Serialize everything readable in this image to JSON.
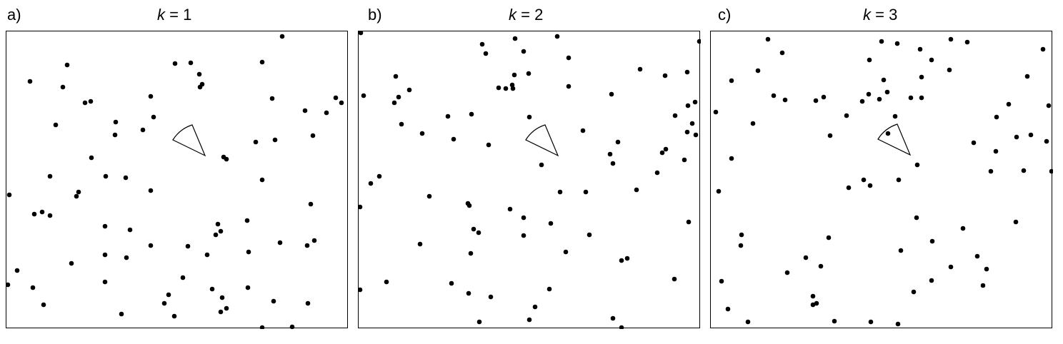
{
  "panels": [
    {
      "label": "a)",
      "title_var": "k",
      "title_rest": " = 1",
      "cone": "sector",
      "points": [
        [
          394,
          50
        ],
        [
          244,
          88
        ],
        [
          266,
          87
        ],
        [
          366,
          86
        ],
        [
          93,
          90
        ],
        [
          41,
          113
        ],
        [
          278,
          103
        ],
        [
          282,
          117
        ],
        [
          279,
          121
        ],
        [
          87,
          121
        ],
        [
          210,
          134
        ],
        [
          380,
          137
        ],
        [
          118,
          143
        ],
        [
          126,
          141
        ],
        [
          469,
          136
        ],
        [
          477,
          143
        ],
        [
          426,
          154
        ],
        [
          456,
          157
        ],
        [
          161,
          170
        ],
        [
          214,
          163
        ],
        [
          77,
          174
        ],
        [
          199,
          181
        ],
        [
          160,
          188
        ],
        [
          437,
          189
        ],
        [
          384,
          195
        ],
        [
          357,
          198
        ],
        [
          312,
          219
        ],
        [
          316,
          222
        ],
        [
          127,
          220
        ],
        [
          69,
          246
        ],
        [
          147,
          246
        ],
        [
          175,
          248
        ],
        [
          366,
          251
        ],
        [
          210,
          266
        ],
        [
          109,
          268
        ],
        [
          106,
          274
        ],
        [
          12,
          272
        ],
        [
          434,
          285
        ],
        [
          47,
          299
        ],
        [
          58,
          296
        ],
        [
          69,
          301
        ],
        [
          345,
          308
        ],
        [
          304,
          313
        ],
        [
          146,
          316
        ],
        [
          181,
          321
        ],
        [
          308,
          323
        ],
        [
          301,
          328
        ],
        [
          439,
          336
        ],
        [
          429,
          343
        ],
        [
          391,
          339
        ],
        [
          210,
          343
        ],
        [
          262,
          344
        ],
        [
          347,
          352
        ],
        [
          289,
          356
        ],
        [
          146,
          356
        ],
        [
          176,
          360
        ],
        [
          99,
          368
        ],
        [
          23,
          378
        ],
        [
          255,
          388
        ],
        [
          8,
          398
        ],
        [
          146,
          394
        ],
        [
          45,
          402
        ],
        [
          296,
          404
        ],
        [
          346,
          402
        ],
        [
          235,
          412
        ],
        [
          310,
          416
        ],
        [
          229,
          424
        ],
        [
          382,
          421
        ],
        [
          430,
          424
        ],
        [
          60,
          426
        ],
        [
          316,
          431
        ],
        [
          308,
          436
        ],
        [
          243,
          442
        ],
        [
          169,
          439
        ],
        [
          408,
          457
        ],
        [
          366,
          462
        ]
      ]
    },
    {
      "label": "b)",
      "title_var": "k",
      "title_rest": " = 2",
      "cone": "sector",
      "points": [
        [
          504,
          45
        ],
        [
          720,
          53
        ],
        [
          779,
          50
        ],
        [
          979,
          57
        ],
        [
          674,
          61
        ],
        [
          679,
          74
        ],
        [
          732,
          71
        ],
        [
          795,
          80
        ],
        [
          895,
          96
        ],
        [
          961,
          100
        ],
        [
          553,
          106
        ],
        [
          739,
          102
        ],
        [
          719,
          104
        ],
        [
          930,
          105
        ],
        [
          716,
          118
        ],
        [
          697,
          122
        ],
        [
          707,
          123
        ],
        [
          717,
          123
        ],
        [
          795,
          120
        ],
        [
          572,
          125
        ],
        [
          508,
          133
        ],
        [
          557,
          135
        ],
        [
          551,
          143
        ],
        [
          855,
          131
        ],
        [
          972,
          142
        ],
        [
          962,
          147
        ],
        [
          626,
          162
        ],
        [
          659,
          159
        ],
        [
          740,
          163
        ],
        [
          944,
          161
        ],
        [
          968,
          172
        ],
        [
          561,
          173
        ],
        [
          961,
          184
        ],
        [
          590,
          186
        ],
        [
          815,
          182
        ],
        [
          634,
          194
        ],
        [
          973,
          188
        ],
        [
          683,
          202
        ],
        [
          864,
          198
        ],
        [
          931,
          208
        ],
        [
          926,
          213
        ],
        [
          853,
          215
        ],
        [
          957,
          223
        ],
        [
          857,
          228
        ],
        [
          757,
          230
        ],
        [
          530,
          246
        ],
        [
          919,
          241
        ],
        [
          518,
          256
        ],
        [
          890,
          265
        ],
        [
          819,
          268
        ],
        [
          783,
          268
        ],
        [
          600,
          274
        ],
        [
          654,
          284
        ],
        [
          656,
          287
        ],
        [
          713,
          292
        ],
        [
          503,
          289
        ],
        [
          732,
          304
        ],
        [
          770,
          312
        ],
        [
          963,
          310
        ],
        [
          662,
          320
        ],
        [
          669,
          325
        ],
        [
          732,
          329
        ],
        [
          824,
          328
        ],
        [
          587,
          341
        ],
        [
          791,
          352
        ],
        [
          658,
          354
        ],
        [
          877,
          361
        ],
        [
          869,
          364
        ],
        [
          540,
          394
        ],
        [
          631,
          396
        ],
        [
          943,
          390
        ],
        [
          503,
          405
        ],
        [
          768,
          404
        ],
        [
          655,
          410
        ],
        [
          686,
          415
        ],
        [
          748,
          429
        ],
        [
          740,
          447
        ],
        [
          857,
          445
        ],
        [
          670,
          450
        ],
        [
          869,
          458
        ]
      ]
    },
    {
      "label": "c)",
      "title_var": "k",
      "title_rest": " = 3",
      "cone": "sector-dot",
      "points": [
        [
          1074,
          54
        ],
        [
          1233,
          57
        ],
        [
          1255,
          60
        ],
        [
          1330,
          54
        ],
        [
          1353,
          58
        ],
        [
          1094,
          73
        ],
        [
          1216,
          83
        ],
        [
          1287,
          68
        ],
        [
          1303,
          83
        ],
        [
          1459,
          68
        ],
        [
          1060,
          98
        ],
        [
          1328,
          97
        ],
        [
          1023,
          112
        ],
        [
          1236,
          111
        ],
        [
          1289,
          107
        ],
        [
          1437,
          106
        ],
        [
          1215,
          131
        ],
        [
          1241,
          128
        ],
        [
          1082,
          133
        ],
        [
          1098,
          139
        ],
        [
          1141,
          140
        ],
        [
          1152,
          135
        ],
        [
          1206,
          141
        ],
        [
          1230,
          138
        ],
        [
          1274,
          136
        ],
        [
          1289,
          136
        ],
        [
          1467,
          147
        ],
        [
          1411,
          145
        ],
        [
          1001,
          156
        ],
        [
          1184,
          161
        ],
        [
          1252,
          162
        ],
        [
          1394,
          163
        ],
        [
          1053,
          172
        ],
        [
          1242,
          186
        ],
        [
          1442,
          188
        ],
        [
          1161,
          189
        ],
        [
          1464,
          197
        ],
        [
          1362,
          199
        ],
        [
          1422,
          191
        ],
        [
          1393,
          211
        ],
        [
          1023,
          221
        ],
        [
          1283,
          230
        ],
        [
          1386,
          239
        ],
        [
          1432,
          238
        ],
        [
          1472,
          239
        ],
        [
          1208,
          251
        ],
        [
          1217,
          259
        ],
        [
          1187,
          262
        ],
        [
          1257,
          251
        ],
        [
          1005,
          267
        ],
        [
          1282,
          304
        ],
        [
          1421,
          310
        ],
        [
          1347,
          319
        ],
        [
          1037,
          328
        ],
        [
          1159,
          332
        ],
        [
          1304,
          337
        ],
        [
          1036,
          343
        ],
        [
          1260,
          350
        ],
        [
          1127,
          360
        ],
        [
          1367,
          358
        ],
        [
          1148,
          372
        ],
        [
          1380,
          376
        ],
        [
          1330,
          373
        ],
        [
          1101,
          381
        ],
        [
          1303,
          392
        ],
        [
          1375,
          399
        ],
        [
          1009,
          393
        ],
        [
          1278,
          408
        ],
        [
          1137,
          414
        ],
        [
          1137,
          426
        ],
        [
          1142,
          424
        ],
        [
          1018,
          432
        ],
        [
          1046,
          450
        ],
        [
          1167,
          449
        ],
        [
          1218,
          450
        ],
        [
          1256,
          453
        ]
      ]
    }
  ]
}
